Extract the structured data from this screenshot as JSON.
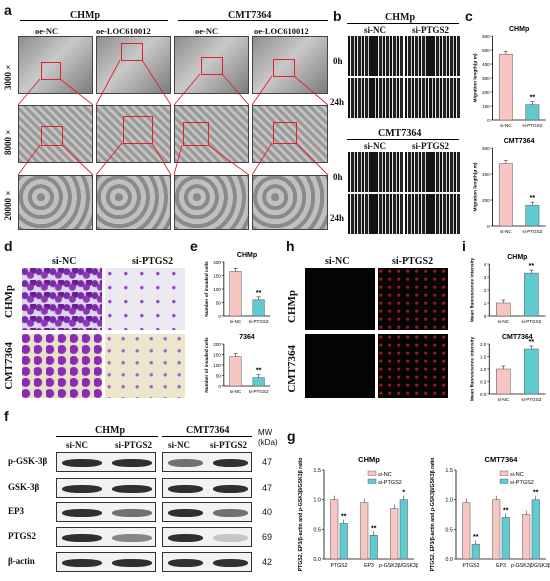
{
  "panels": {
    "a": {
      "label": "a",
      "groups": [
        "CHMp",
        "CMT7364"
      ],
      "columns": [
        "oe-NC",
        "oe-LOC610012",
        "oe-NC",
        "oe-LOC610012"
      ],
      "magnifications": [
        "3000×",
        "8000×",
        "20000×"
      ]
    },
    "b": {
      "label": "b",
      "groups": [
        "CHMp",
        "CMT7364"
      ],
      "columns": [
        "si-NC",
        "si-PTGS2"
      ],
      "times": [
        "0h",
        "24h"
      ]
    },
    "c": {
      "label": "c"
    },
    "d": {
      "label": "d",
      "columns": [
        "si-NC",
        "si-PTGS2"
      ],
      "rows": [
        "CHMp",
        "CMT7364"
      ]
    },
    "e": {
      "label": "e"
    },
    "f": {
      "label": "f",
      "groups": [
        "CHMp",
        "CMT7364"
      ],
      "columns": [
        "si-NC",
        "si-PTGS2",
        "si-NC",
        "si-PTGS2"
      ],
      "mw_label": "MW (kDa)",
      "proteins": [
        {
          "name": "p-GSK-3β",
          "mw": "47"
        },
        {
          "name": "GSK-3β",
          "mw": "47"
        },
        {
          "name": "EP3",
          "mw": "40"
        },
        {
          "name": "PTGS2",
          "mw": "69"
        },
        {
          "name": "β-actin",
          "mw": "42"
        }
      ]
    },
    "g": {
      "label": "g"
    },
    "h": {
      "label": "h",
      "columns": [
        "si-NC",
        "si-PTGS2"
      ],
      "rows": [
        "CHMp",
        "CMT7364"
      ]
    },
    "i": {
      "label": "i"
    }
  },
  "chart_data": [
    {
      "id": "c-chmp",
      "type": "bar",
      "title": "CHMp",
      "categories": [
        "si-NC",
        "si-PTGS2"
      ],
      "values": [
        470,
        110
      ],
      "ylabel": "Migration length(μ m)",
      "ylim": [
        0,
        600
      ],
      "yticks": [
        "0",
        "100",
        "200",
        "300",
        "400",
        "500",
        "600"
      ],
      "sig": [
        "",
        "**"
      ],
      "colors": [
        "#f7c6c2",
        "#5fcad0"
      ]
    },
    {
      "id": "c-cmt",
      "type": "bar",
      "title": "CMT7364",
      "categories": [
        "si-NC",
        "si-PTGS2"
      ],
      "values": [
        480,
        160
      ],
      "ylabel": "Migration length(μ m)",
      "ylim": [
        0,
        600
      ],
      "yticks": [
        "0",
        "200",
        "400",
        "600"
      ],
      "sig": [
        "",
        "**"
      ],
      "colors": [
        "#f7c6c2",
        "#5fcad0"
      ]
    },
    {
      "id": "e-chmp",
      "type": "bar",
      "title": "CHMp",
      "categories": [
        "si-NC",
        "si-PTGS2"
      ],
      "values": [
        165,
        60
      ],
      "ylabel": "Number of invaded cells",
      "ylim": [
        0,
        200
      ],
      "yticks": [
        "0",
        "50",
        "100",
        "150",
        "200"
      ],
      "sig": [
        "",
        "**"
      ],
      "colors": [
        "#f7c6c2",
        "#5fcad0"
      ]
    },
    {
      "id": "e-cmt",
      "type": "bar",
      "title": "7364",
      "categories": [
        "si-NC",
        "si-PTGS2"
      ],
      "values": [
        140,
        40
      ],
      "ylabel": "Number of invaded cells",
      "ylim": [
        0,
        200
      ],
      "yticks": [
        "0",
        "50",
        "100",
        "150",
        "200"
      ],
      "sig": [
        "",
        "**"
      ],
      "colors": [
        "#f7c6c2",
        "#5fcad0"
      ]
    },
    {
      "id": "i-chmp",
      "type": "bar",
      "title": "CHMp",
      "categories": [
        "si-NC",
        "si-PTGS2"
      ],
      "values": [
        1.0,
        3.3
      ],
      "ylabel": "Mean fluorescence intensity",
      "ylim": [
        0,
        4
      ],
      "yticks": [
        "0",
        "1",
        "2",
        "3",
        "4"
      ],
      "sig": [
        "",
        "**"
      ],
      "colors": [
        "#f7c6c2",
        "#5fcad0"
      ]
    },
    {
      "id": "i-cmt",
      "type": "bar",
      "title": "CMT7364",
      "categories": [
        "si-NC",
        "si-PTGS2"
      ],
      "values": [
        1.0,
        1.8
      ],
      "ylabel": "Mean fluorescence intensity",
      "ylim": [
        0,
        2
      ],
      "yticks": [
        "0.0",
        "0.5",
        "1.0",
        "1.5",
        "2.0"
      ],
      "sig": [
        "",
        "**"
      ],
      "colors": [
        "#f7c6c2",
        "#5fcad0"
      ]
    },
    {
      "id": "g-chmp",
      "type": "bar",
      "title": "CHMp",
      "categories": [
        "PTGS2",
        "EP3",
        "p-GSK3β/GSK3β"
      ],
      "series": [
        {
          "name": "si-NC",
          "values": [
            1.0,
            0.95,
            0.85
          ],
          "color": "#f7c6c2"
        },
        {
          "name": "si-PTGS2",
          "values": [
            0.6,
            0.4,
            1.0
          ],
          "color": "#5fcad0"
        }
      ],
      "ylabel": "PTGS2, EP3/β-actin and p-GSK3β/GSK3β ratio",
      "ylim": [
        0,
        1.5
      ],
      "yticks": [
        "0.0",
        "0.5",
        "1.0",
        "1.5"
      ],
      "sig": [
        [
          "",
          "**"
        ],
        [
          "",
          "**"
        ],
        [
          "",
          "*"
        ]
      ]
    },
    {
      "id": "g-cmt",
      "type": "bar",
      "title": "CMT7364",
      "categories": [
        "PTGS2",
        "EP3",
        "p-GSK3β/GSK3β"
      ],
      "series": [
        {
          "name": "si-NC",
          "values": [
            0.95,
            1.0,
            0.75
          ],
          "color": "#f7c6c2"
        },
        {
          "name": "si-PTGS2",
          "values": [
            0.25,
            0.7,
            1.0
          ],
          "color": "#5fcad0"
        }
      ],
      "ylabel": "PTGS2, EP3/β-actin and p-GSK3β/GSK3β ratio",
      "ylim": [
        0,
        1.5
      ],
      "yticks": [
        "0.0",
        "0.5",
        "1.0",
        "1.5"
      ],
      "sig": [
        [
          "",
          "**"
        ],
        [
          "",
          "**"
        ],
        [
          "",
          "**"
        ]
      ]
    }
  ]
}
